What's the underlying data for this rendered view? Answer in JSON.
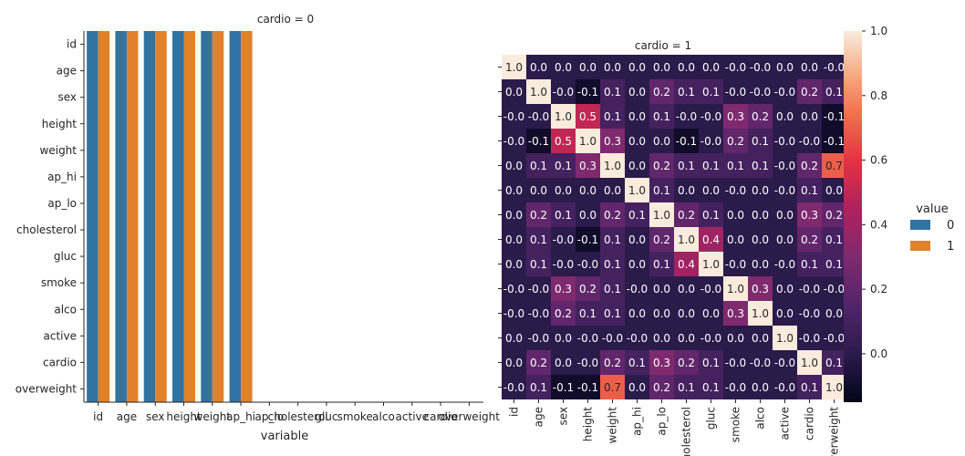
{
  "chart_data": [
    {
      "type": "bar",
      "title": "cardio = 0",
      "xlabel": "variable",
      "ylabel": "",
      "categories": [
        "id",
        "age",
        "sex",
        "height",
        "weight",
        "ap_hi",
        "ap_lo",
        "cholesterol",
        "gluc",
        "smoke",
        "alco",
        "active",
        "cardio",
        "overweight"
      ],
      "y_categories": [
        "id",
        "age",
        "sex",
        "height",
        "weight",
        "ap_hi",
        "ap_lo",
        "cholesterol",
        "gluc",
        "smoke",
        "alco",
        "active",
        "cardio",
        "overweight"
      ],
      "series": [
        {
          "name": "0",
          "values": [
            1,
            1,
            1,
            1,
            1,
            1,
            0,
            0,
            0,
            0,
            0,
            0,
            0,
            0
          ],
          "color": "#3274a1"
        },
        {
          "name": "1",
          "values": [
            1,
            1,
            1,
            1,
            1,
            1,
            0,
            0,
            0,
            0,
            0,
            0,
            0,
            0
          ],
          "color": "#e1812c"
        }
      ],
      "ylim": [
        0,
        1
      ],
      "legend_placement": "right",
      "legend_title": "value"
    },
    {
      "type": "heatmap",
      "title": "cardio = 1",
      "labels": [
        "id",
        "age",
        "sex",
        "height",
        "weight",
        "ap_hi",
        "ap_lo",
        "cholesterol",
        "gluc",
        "smoke",
        "alco",
        "active",
        "cardio",
        "overweight"
      ],
      "matrix": [
        [
          "1.0",
          "0.0",
          "0.0",
          "0.0",
          "0.0",
          "0.0",
          "0.0",
          "0.0",
          "0.0",
          "-0.0",
          "-0.0",
          "0.0",
          "0.0",
          "-0.0"
        ],
        [
          "0.0",
          "1.0",
          "-0.0",
          "-0.1",
          "0.1",
          "0.0",
          "0.2",
          "0.1",
          "0.1",
          "-0.0",
          "-0.0",
          "-0.0",
          "0.2",
          "0.1"
        ],
        [
          "-0.0",
          "-0.0",
          "1.0",
          "0.5",
          "0.1",
          "0.0",
          "0.1",
          "-0.0",
          "-0.0",
          "0.3",
          "0.2",
          "0.0",
          "0.0",
          "-0.1"
        ],
        [
          "-0.0",
          "-0.1",
          "0.5",
          "1.0",
          "0.3",
          "0.0",
          "0.0",
          "-0.1",
          "-0.0",
          "0.2",
          "0.1",
          "-0.0",
          "-0.0",
          "-0.1"
        ],
        [
          "0.0",
          "0.1",
          "0.1",
          "0.3",
          "1.0",
          "0.0",
          "0.2",
          "0.1",
          "0.1",
          "0.1",
          "0.1",
          "-0.0",
          "0.2",
          "0.7"
        ],
        [
          "0.0",
          "0.0",
          "0.0",
          "0.0",
          "0.0",
          "1.0",
          "0.1",
          "0.0",
          "0.0",
          "-0.0",
          "0.0",
          "-0.0",
          "0.1",
          "0.0"
        ],
        [
          "0.0",
          "0.2",
          "0.1",
          "0.0",
          "0.2",
          "0.1",
          "1.0",
          "0.2",
          "0.1",
          "0.0",
          "0.0",
          "0.0",
          "0.3",
          "0.2"
        ],
        [
          "0.0",
          "0.1",
          "-0.0",
          "-0.1",
          "0.1",
          "0.0",
          "0.2",
          "1.0",
          "0.4",
          "0.0",
          "0.0",
          "0.0",
          "0.2",
          "0.1"
        ],
        [
          "0.0",
          "0.1",
          "-0.0",
          "-0.0",
          "0.1",
          "0.0",
          "0.1",
          "0.4",
          "1.0",
          "-0.0",
          "0.0",
          "-0.0",
          "0.1",
          "0.1"
        ],
        [
          "-0.0",
          "-0.0",
          "0.3",
          "0.2",
          "0.1",
          "-0.0",
          "0.0",
          "0.0",
          "-0.0",
          "1.0",
          "0.3",
          "0.0",
          "-0.0",
          "-0.0"
        ],
        [
          "-0.0",
          "-0.0",
          "0.2",
          "0.1",
          "0.1",
          "0.0",
          "0.0",
          "0.0",
          "0.0",
          "0.3",
          "1.0",
          "0.0",
          "-0.0",
          "0.0"
        ],
        [
          "0.0",
          "-0.0",
          "0.0",
          "-0.0",
          "-0.0",
          "-0.0",
          "0.0",
          "0.0",
          "-0.0",
          "0.0",
          "0.0",
          "1.0",
          "-0.0",
          "-0.0"
        ],
        [
          "0.0",
          "0.2",
          "0.0",
          "-0.0",
          "0.2",
          "0.1",
          "0.3",
          "0.2",
          "0.1",
          "-0.0",
          "-0.0",
          "-0.0",
          "1.0",
          "0.1"
        ],
        [
          "-0.0",
          "0.1",
          "-0.1",
          "-0.1",
          "0.7",
          "0.0",
          "0.2",
          "0.1",
          "0.1",
          "-0.0",
          "0.0",
          "-0.0",
          "0.1",
          "1.0"
        ]
      ],
      "colorbar": {
        "min": -0.15,
        "max": 1.0,
        "ticks": [
          0.0,
          0.2,
          0.4,
          0.6,
          0.8,
          1.0
        ],
        "colormap": "rocket"
      }
    }
  ]
}
